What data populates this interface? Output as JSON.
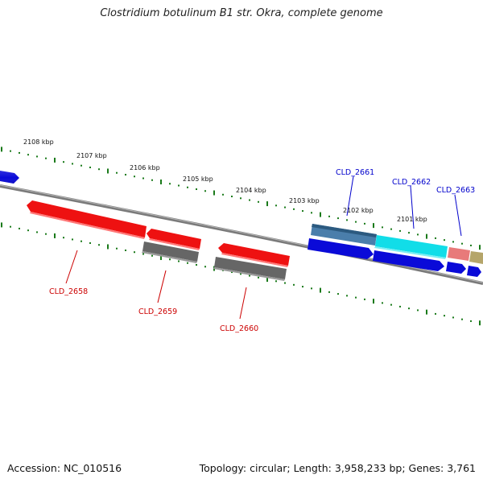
{
  "title": "Clostridium botulinum B1 str. Okra, complete genome",
  "footer": {
    "accession": "Accession: NC_010516",
    "summary": "Topology: circular; Length: 3,958,233 bp; Genes: 3,761"
  },
  "colors": {
    "backbone": "#7a7a7a",
    "tick": "#1a7a1a",
    "label_red": "#cc0000",
    "label_blue": "#0000cc"
  },
  "scale_labels": [
    "2108 kbp",
    "2107 kbp",
    "2106 kbp",
    "2105 kbp",
    "2104 kbp",
    "2103 kbp",
    "2102 kbp",
    "2101 kbp"
  ],
  "genes": [
    {
      "name": "",
      "color": "#0a0ad8",
      "strand": "+"
    },
    {
      "name": "",
      "color": "#ee1111",
      "strand": "-"
    },
    {
      "name": "",
      "color": "#ee1111",
      "strand": "-"
    },
    {
      "name": "",
      "color": "#666666",
      "strand": "-"
    },
    {
      "name": "",
      "color": "#ee1111",
      "strand": "-"
    },
    {
      "name": "",
      "color": "#666666",
      "strand": "-"
    },
    {
      "name": "",
      "color": "#4a7eab",
      "strand": "+"
    },
    {
      "name": "",
      "color": "#0a0ad8",
      "strand": "+"
    },
    {
      "name": "",
      "color": "#11dde8",
      "strand": "+"
    },
    {
      "name": "",
      "color": "#0a0ad8",
      "strand": "+"
    },
    {
      "name": "",
      "color": "#e87a7a",
      "strand": "+"
    },
    {
      "name": "",
      "color": "#b5a56a",
      "strand": "+"
    },
    {
      "name": "",
      "color": "#0a0ad8",
      "strand": "+"
    },
    {
      "name": "",
      "color": "#0a0ad8",
      "strand": "+"
    }
  ],
  "gene_labels": [
    {
      "text": "CLD_2658",
      "color": "#cc0000"
    },
    {
      "text": "CLD_2659",
      "color": "#cc0000"
    },
    {
      "text": "CLD_2660",
      "color": "#cc0000"
    },
    {
      "text": "CLD_2661",
      "color": "#0000cc"
    },
    {
      "text": "CLD_2662",
      "color": "#0000cc"
    },
    {
      "text": "CLD_2663",
      "color": "#0000cc"
    }
  ]
}
